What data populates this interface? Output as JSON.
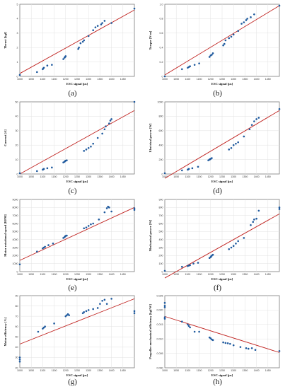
{
  "chart_data": [
    {
      "type": "scatter",
      "panel": "(a)",
      "xlabel": "ESC signal [µs]",
      "ylabel": "Thrust [kgf]",
      "xlim": [
        1000,
        1500
      ],
      "ylim": [
        0,
        5
      ],
      "xticks": [
        "1000",
        "1050",
        "1100",
        "1150",
        "1200",
        "1250",
        "1300",
        "1350",
        "1400",
        "1450"
      ],
      "yticks": [
        "0",
        "1",
        "2",
        "3",
        "4",
        "5"
      ],
      "grid": true,
      "x": [
        1000,
        1075,
        1100,
        1102,
        1105,
        1120,
        1140,
        1190,
        1195,
        1198,
        1200,
        1255,
        1258,
        1265,
        1275,
        1280,
        1300,
        1320,
        1330,
        1340,
        1355,
        1360,
        1370,
        1400,
        1500
      ],
      "y": [
        0.1,
        0.3,
        0.5,
        0.55,
        0.6,
        0.75,
        0.8,
        1.2,
        1.3,
        1.35,
        1.4,
        1.9,
        2.0,
        2.3,
        2.4,
        2.5,
        2.8,
        3.2,
        3.4,
        3.5,
        3.6,
        3.7,
        3.85,
        3.7,
        4.7
      ],
      "fit": [
        [
          1000,
          0.2
        ],
        [
          1500,
          4.6
        ]
      ]
    },
    {
      "type": "scatter",
      "panel": "(b)",
      "xlabel": "ESC signal [µs]",
      "ylabel": "Torque [N·m]",
      "xlim": [
        1000,
        1500
      ],
      "ylim": [
        0,
        1.0
      ],
      "xticks": [
        "1000",
        "1050",
        "1100",
        "1150",
        "1200",
        "1250",
        "1300",
        "1350",
        "1400",
        "1450"
      ],
      "yticks": [
        "0",
        "0.2",
        "0.4",
        "0.6",
        "0.8",
        "1.0"
      ],
      "grid": true,
      "x": [
        1000,
        1075,
        1100,
        1105,
        1110,
        1130,
        1150,
        1195,
        1200,
        1205,
        1210,
        1255,
        1260,
        1265,
        1280,
        1290,
        1300,
        1320,
        1335,
        1345,
        1355,
        1360,
        1375,
        1390,
        1500
      ],
      "y": [
        0.0,
        0.1,
        0.12,
        0.13,
        0.14,
        0.16,
        0.18,
        0.27,
        0.29,
        0.3,
        0.32,
        0.43,
        0.45,
        0.5,
        0.53,
        0.55,
        0.58,
        0.63,
        0.73,
        0.75,
        0.78,
        0.8,
        0.82,
        0.86,
        0.98
      ],
      "fit": [
        [
          1000,
          0.02
        ],
        [
          1500,
          0.98
        ]
      ]
    },
    {
      "type": "scatter",
      "panel": "(c)",
      "xlabel": "ESC signal [µs]",
      "ylabel": "Current [A]",
      "xlim": [
        1000,
        1500
      ],
      "ylim": [
        0,
        50
      ],
      "xticks": [
        "1000",
        "1050",
        "1100",
        "1150",
        "1200",
        "1250",
        "1300",
        "1350",
        "1400",
        "1450"
      ],
      "yticks": [
        "0",
        "10",
        "20",
        "30",
        "40",
        "50"
      ],
      "grid": true,
      "x": [
        1000,
        1075,
        1100,
        1102,
        1105,
        1120,
        1140,
        1190,
        1195,
        1198,
        1200,
        1205,
        1280,
        1290,
        1300,
        1310,
        1320,
        1340,
        1360,
        1370,
        1375,
        1390,
        1395,
        1400,
        1500
      ],
      "y": [
        0.5,
        2,
        3,
        3.2,
        3.5,
        4,
        4.5,
        8,
        8.5,
        9,
        9.2,
        9.5,
        16,
        17,
        18,
        19,
        21,
        25,
        28,
        31,
        33,
        35,
        37,
        38,
        50
      ],
      "fit": [
        [
          1000,
          0
        ],
        [
          1500,
          44
        ]
      ]
    },
    {
      "type": "scatter",
      "panel": "(d)",
      "xlabel": "ESC signal [µs]",
      "ylabel": "Electrical power [W]",
      "xlim": [
        1000,
        1500
      ],
      "ylim": [
        0,
        1000
      ],
      "xticks": [
        "1000",
        "1050",
        "1100",
        "1150",
        "1200",
        "1250",
        "1300",
        "1350",
        "1400",
        "1450"
      ],
      "yticks": [
        "0",
        "200",
        "400",
        "600",
        "800",
        "1000"
      ],
      "grid": true,
      "x": [
        1000,
        1075,
        1100,
        1102,
        1105,
        1120,
        1145,
        1190,
        1195,
        1198,
        1200,
        1205,
        1280,
        1290,
        1300,
        1310,
        1320,
        1345,
        1370,
        1380,
        1390,
        1400,
        1410,
        1500
      ],
      "y": [
        10,
        50,
        60,
        65,
        70,
        80,
        100,
        190,
        200,
        205,
        210,
        220,
        340,
        360,
        400,
        420,
        440,
        520,
        620,
        680,
        730,
        760,
        780,
        900
      ],
      "fit": [
        [
          1000,
          -60
        ],
        [
          1500,
          880
        ]
      ]
    },
    {
      "type": "scatter",
      "panel": "(e)",
      "xlabel": "ESC signal [µs]",
      "ylabel": "Motor rotational speed [RPM]",
      "xlim": [
        1000,
        1500
      ],
      "ylim": [
        0,
        9000
      ],
      "xticks": [
        "1000",
        "1050",
        "1100",
        "1150",
        "1200",
        "1250",
        "1300",
        "1350",
        "1400",
        "1450"
      ],
      "yticks": [
        "0",
        "1000",
        "2000",
        "3000",
        "4000",
        "5000",
        "6000",
        "7000",
        "8000",
        "9000"
      ],
      "grid": true,
      "x": [
        1000,
        1075,
        1100,
        1105,
        1110,
        1125,
        1145,
        1190,
        1195,
        1198,
        1200,
        1205,
        1280,
        1290,
        1300,
        1310,
        1320,
        1345,
        1370,
        1380,
        1385,
        1390,
        1400,
        1500,
        1500
      ],
      "y": [
        900,
        2500,
        2900,
        3000,
        3100,
        3300,
        3500,
        4200,
        4300,
        4400,
        4450,
        4500,
        5400,
        5500,
        5700,
        5900,
        6000,
        6500,
        7400,
        7900,
        8100,
        8000,
        7500,
        7900,
        7700
      ],
      "fit": [
        [
          1000,
          1400
        ],
        [
          1500,
          8000
        ]
      ]
    },
    {
      "type": "scatter",
      "panel": "(f)",
      "xlabel": "ESC signal [µs]",
      "ylabel": "Mechanical power [W]",
      "xlim": [
        1000,
        1500
      ],
      "ylim": [
        0,
        900
      ],
      "xticks": [
        "1000",
        "1050",
        "1100",
        "1150",
        "1200",
        "1250",
        "1300",
        "1350",
        "1400",
        "1450"
      ],
      "yticks": [
        "0",
        "100",
        "200",
        "300",
        "400",
        "500",
        "600",
        "700",
        "800",
        "900"
      ],
      "grid": true,
      "x": [
        1000,
        1075,
        1100,
        1105,
        1110,
        1125,
        1145,
        1195,
        1200,
        1202,
        1205,
        1210,
        1280,
        1290,
        1300,
        1310,
        1320,
        1345,
        1375,
        1385,
        1390,
        1400,
        1410,
        1500,
        1500
      ],
      "y": [
        10,
        60,
        70,
        75,
        80,
        100,
        110,
        170,
        180,
        190,
        200,
        210,
        280,
        300,
        320,
        350,
        380,
        420,
        580,
        620,
        650,
        660,
        760,
        780,
        800
      ],
      "fit": [
        [
          1000,
          -80
        ],
        [
          1500,
          720
        ]
      ]
    },
    {
      "type": "scatter",
      "panel": "(g)",
      "xlabel": "ESC signal [µs]",
      "ylabel": "Motor efficiency [%]",
      "xlim": [
        1000,
        1500
      ],
      "ylim": [
        20,
        90
      ],
      "xticks": [
        "1000",
        "1050",
        "1100",
        "1150",
        "1200",
        "1250",
        "1300",
        "1350",
        "1400",
        "1450"
      ],
      "yticks": [
        "20",
        "30",
        "40",
        "50",
        "60",
        "70",
        "80",
        "90"
      ],
      "grid": true,
      "x": [
        1000,
        1000,
        1000,
        1080,
        1100,
        1105,
        1110,
        1150,
        1200,
        1205,
        1210,
        1215,
        1275,
        1280,
        1290,
        1300,
        1320,
        1340,
        1350,
        1360,
        1370,
        1380,
        1400,
        1500,
        1500
      ],
      "y": [
        26,
        28,
        30,
        55,
        58,
        59,
        60,
        63,
        70,
        71,
        72,
        71,
        73,
        74,
        75,
        76,
        77,
        78,
        82,
        85,
        86,
        82,
        87,
        75,
        73
      ],
      "fit": [
        [
          1000,
          43
        ],
        [
          1500,
          87
        ]
      ]
    },
    {
      "type": "scatter",
      "panel": "(h)",
      "xlabel": "ESC signal [µs]",
      "ylabel": "Propeller mechanical efficiency [kgf/W]",
      "xlim": [
        1000,
        1500
      ],
      "ylim": [
        0,
        0.025
      ],
      "xticks": [
        "1000",
        "1050",
        "1100",
        "1150",
        "1200",
        "1250",
        "1300",
        "1350",
        "1400",
        "1450"
      ],
      "yticks": [
        "0.000",
        "0.005",
        "0.010",
        "0.015",
        "0.020",
        "0.025"
      ],
      "grid": true,
      "x": [
        1000,
        1000,
        1000,
        1000,
        1000,
        1075,
        1100,
        1105,
        1110,
        1130,
        1150,
        1195,
        1200,
        1205,
        1210,
        1255,
        1265,
        1275,
        1285,
        1300,
        1330,
        1355,
        1365,
        1380,
        1395,
        1500
      ],
      "y": [
        0.0225,
        0.0215,
        0.021,
        0.0175,
        0.017,
        0.016,
        0.015,
        0.0145,
        0.014,
        0.0125,
        0.0125,
        0.0105,
        0.0102,
        0.0098,
        0.0096,
        0.0088,
        0.0086,
        0.0085,
        0.0083,
        0.0078,
        0.0072,
        0.0068,
        0.0066,
        0.0068,
        0.0062,
        0.0058
      ],
      "fit": [
        [
          1000,
          0.0178
        ],
        [
          1500,
          0.0053
        ]
      ]
    }
  ]
}
